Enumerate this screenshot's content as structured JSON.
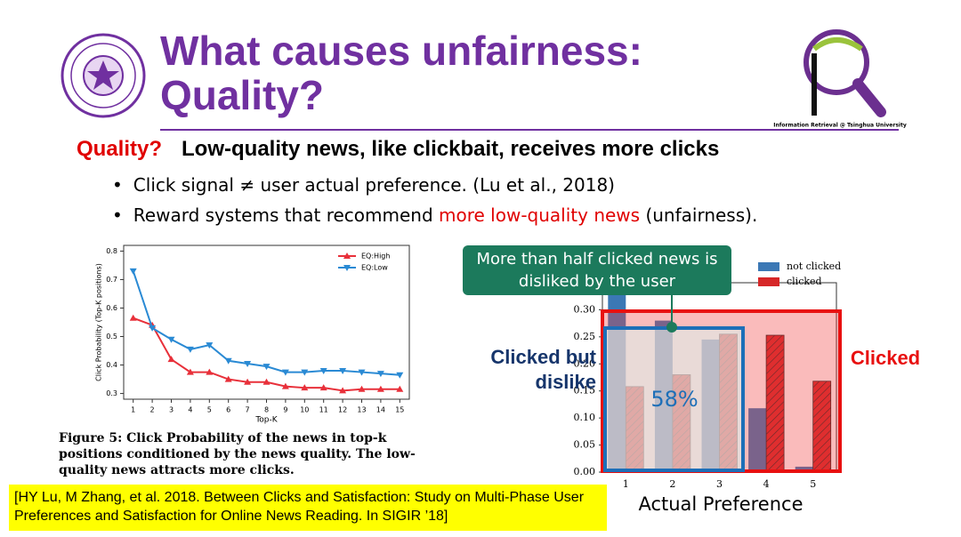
{
  "title_line1": "What causes unfairness:",
  "title_line2": "Quality?",
  "lab_logo_text": "Information Retrieval @ Tsinghua University",
  "headline_key": "Quality?",
  "headline": "Low-quality news, like clickbait, receives more clicks",
  "bullets": [
    {
      "parts": [
        "Click signal ≠ user actual preference. (Lu et al., 2018)"
      ]
    },
    {
      "parts": [
        "Reward systems that recommend ",
        "more low-quality news",
        " (unfairness)."
      ]
    }
  ],
  "figure_caption": "Figure 5: Click Probability of the news in top-k positions conditioned by the news quality. The low-quality news attracts more clicks.",
  "citation": "[HY Lu, M Zhang, et al. 2018. Between Clicks and Satisfaction: Study on Multi-Phase User Preferences and Satisfaction for Online News Reading. In SIGIR ’18]",
  "callout": "More than half clicked news is disliked by the user",
  "box_disliked_label": "Clicked but dislike",
  "box_disliked_value": "58%",
  "box_clicked_label": "Clicked",
  "chart_data": [
    {
      "type": "line",
      "xlabel": "Top-K",
      "ylabel": "Click Probability (Top-K positions)",
      "x": [
        1,
        2,
        3,
        4,
        5,
        6,
        7,
        8,
        9,
        10,
        11,
        12,
        13,
        14,
        15
      ],
      "xlim": [
        0.5,
        15.5
      ],
      "xticks": [
        1,
        2,
        3,
        4,
        5,
        6,
        7,
        8,
        9,
        10,
        11,
        12,
        13,
        14,
        15
      ],
      "ylim": [
        0.28,
        0.82
      ],
      "yticks": [
        0.3,
        0.4,
        0.5,
        0.6,
        0.7,
        0.8
      ],
      "legend": "upper right",
      "series": [
        {
          "name": "EQ:High",
          "color": "#e8303a",
          "marker": "up",
          "values": [
            0.565,
            0.54,
            0.42,
            0.375,
            0.375,
            0.35,
            0.34,
            0.34,
            0.325,
            0.32,
            0.32,
            0.31,
            0.315,
            0.315,
            0.315
          ]
        },
        {
          "name": "EQ:Low",
          "color": "#2a8ad4",
          "marker": "down",
          "values": [
            0.73,
            0.53,
            0.49,
            0.455,
            0.47,
            0.415,
            0.405,
            0.395,
            0.375,
            0.375,
            0.38,
            0.38,
            0.375,
            0.37,
            0.365
          ]
        }
      ]
    },
    {
      "type": "bar",
      "xlabel": "Actual Preference",
      "categories": [
        "1",
        "2",
        "3",
        "4",
        "5"
      ],
      "ylim": [
        0,
        0.35
      ],
      "yticks": [
        {
          "value": 0,
          "label": "0.00"
        },
        {
          "value": 0.05,
          "label": "0.05"
        },
        {
          "value": 0.1,
          "label": "0.10"
        },
        {
          "value": 0.15,
          "label": "0.15"
        },
        {
          "value": 0.2,
          "label": "0.20"
        },
        {
          "value": 0.25,
          "label": "0.25"
        },
        {
          "value": 0.3,
          "label": "0.30"
        }
      ],
      "legend": "upper right",
      "series": [
        {
          "name": "not clicked",
          "color": "#3b78b5",
          "values": [
            0.34,
            0.28,
            0.245,
            0.118,
            0.01
          ]
        },
        {
          "name": "clicked",
          "color": "#d62728",
          "values": [
            0.158,
            0.18,
            0.255,
            0.253,
            0.168
          ]
        }
      ]
    }
  ]
}
